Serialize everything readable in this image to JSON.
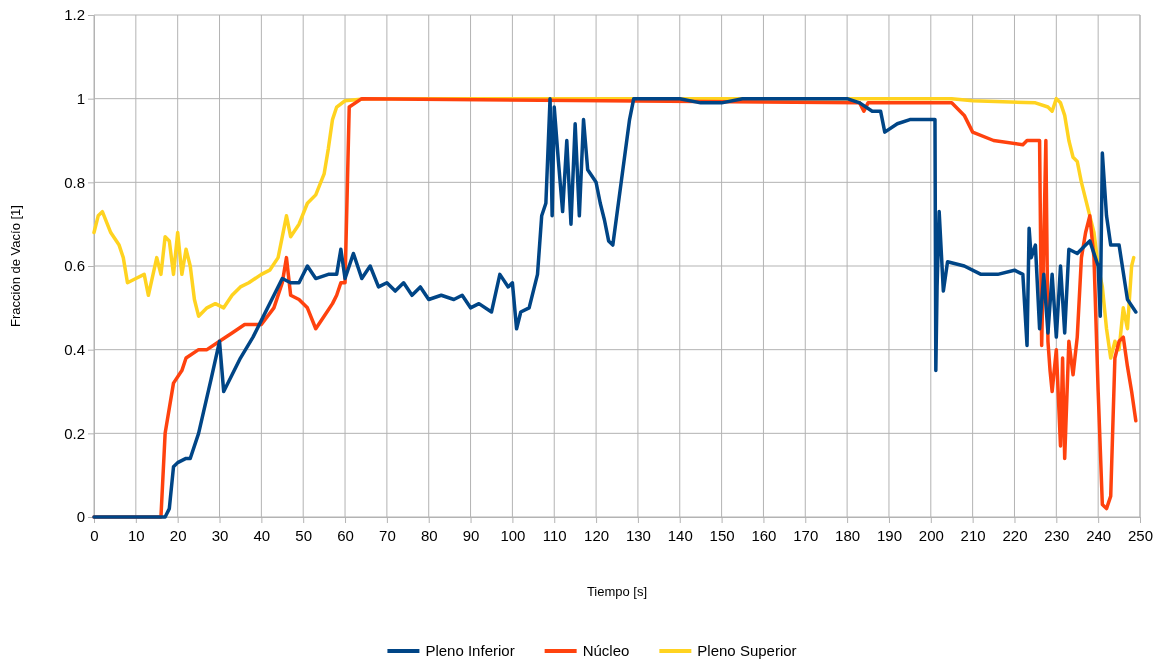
{
  "chart_data": {
    "type": "line",
    "xlabel": "Tiempo [s]",
    "ylabel": "Fracción de Vacío [1]",
    "xlim": [
      0,
      250
    ],
    "ylim": [
      0,
      1.2
    ],
    "xticks": [
      0,
      10,
      20,
      30,
      40,
      50,
      60,
      70,
      80,
      90,
      100,
      110,
      120,
      130,
      140,
      150,
      160,
      170,
      180,
      190,
      200,
      210,
      220,
      230,
      240,
      250
    ],
    "yticks": [
      0,
      0.2,
      0.4,
      0.6,
      0.8,
      1,
      1.2
    ],
    "grid": true,
    "legend": "bottom",
    "marker": "none",
    "line_style": "solid",
    "series": [
      {
        "name": "Pleno Inferior",
        "color": "#004586",
        "x": [
          0,
          17,
          18,
          19,
          20,
          22,
          23,
          25,
          28,
          30,
          31,
          33,
          35,
          38,
          40,
          43,
          45,
          47,
          49,
          51,
          53,
          56,
          58,
          59,
          60,
          62,
          64,
          66,
          68,
          70,
          72,
          74,
          76,
          78,
          80,
          83,
          86,
          88,
          90,
          92,
          95,
          97,
          99,
          100,
          101,
          102,
          104,
          106,
          107,
          108,
          109,
          109.5,
          110,
          111,
          112,
          113,
          114,
          115,
          116,
          117,
          118,
          120,
          121,
          122,
          123,
          124,
          126,
          128,
          129,
          140,
          145,
          150,
          155,
          175,
          180,
          183,
          186,
          188,
          189,
          192,
          195,
          201,
          201.2,
          201.5,
          202,
          203,
          204,
          208,
          212,
          216,
          220,
          222,
          223,
          223.5,
          224,
          225,
          226,
          227,
          228,
          229,
          230,
          231,
          232,
          233,
          235,
          237,
          238,
          240,
          240.5,
          241,
          242,
          243,
          245,
          247,
          249
        ],
        "values": [
          0,
          0,
          0.02,
          0.12,
          0.13,
          0.14,
          0.14,
          0.2,
          0.33,
          0.42,
          0.3,
          0.34,
          0.38,
          0.43,
          0.47,
          0.53,
          0.57,
          0.56,
          0.56,
          0.6,
          0.57,
          0.58,
          0.58,
          0.64,
          0.57,
          0.63,
          0.57,
          0.6,
          0.55,
          0.56,
          0.54,
          0.56,
          0.53,
          0.55,
          0.52,
          0.53,
          0.52,
          0.53,
          0.5,
          0.51,
          0.49,
          0.58,
          0.55,
          0.56,
          0.45,
          0.49,
          0.5,
          0.58,
          0.72,
          0.75,
          1.0,
          0.72,
          0.98,
          0.85,
          0.73,
          0.9,
          0.7,
          0.94,
          0.72,
          0.95,
          0.83,
          0.8,
          0.75,
          0.71,
          0.66,
          0.65,
          0.8,
          0.95,
          1.0,
          1.0,
          0.99,
          0.99,
          1.0,
          1.0,
          1.0,
          0.99,
          0.97,
          0.97,
          0.92,
          0.94,
          0.95,
          0.95,
          0.35,
          0.55,
          0.73,
          0.54,
          0.61,
          0.6,
          0.58,
          0.58,
          0.59,
          0.58,
          0.41,
          0.69,
          0.62,
          0.65,
          0.45,
          0.58,
          0.44,
          0.58,
          0.43,
          0.6,
          0.44,
          0.64,
          0.63,
          0.65,
          0.66,
          0.6,
          0.48,
          0.87,
          0.72,
          0.65,
          0.65,
          0.52,
          0.49
        ]
      },
      {
        "name": "Núcleo",
        "color": "#ff420e",
        "x": [
          0,
          16,
          17,
          19,
          21,
          22,
          25,
          27,
          30,
          33,
          36,
          40,
          43,
          45,
          46,
          47,
          49,
          51,
          53,
          55,
          57,
          58,
          59,
          60,
          61,
          64,
          183,
          184,
          185,
          205,
          208,
          210,
          215,
          222,
          223,
          226,
          226.5,
          227.5,
          228,
          228.5,
          229,
          230,
          231,
          231.5,
          232,
          233,
          234,
          235,
          236,
          237,
          238,
          239,
          240,
          241,
          242,
          243,
          244,
          245,
          246,
          247,
          248,
          249
        ],
        "values": [
          0,
          0,
          0.2,
          0.32,
          0.35,
          0.38,
          0.4,
          0.4,
          0.42,
          0.44,
          0.46,
          0.46,
          0.5,
          0.56,
          0.62,
          0.53,
          0.52,
          0.5,
          0.45,
          0.48,
          0.51,
          0.53,
          0.56,
          0.56,
          0.98,
          1.0,
          0.99,
          0.97,
          0.99,
          0.99,
          0.96,
          0.92,
          0.9,
          0.89,
          0.9,
          0.9,
          0.41,
          0.9,
          0.42,
          0.35,
          0.3,
          0.4,
          0.17,
          0.38,
          0.14,
          0.42,
          0.34,
          0.43,
          0.62,
          0.68,
          0.72,
          0.62,
          0.3,
          0.03,
          0.02,
          0.05,
          0.38,
          0.42,
          0.43,
          0.36,
          0.3,
          0.23
        ]
      },
      {
        "name": "Pleno Superior",
        "color": "#ffd320",
        "x": [
          0,
          1,
          2,
          4,
          6,
          7,
          8,
          10,
          12,
          13,
          15,
          16,
          17,
          18,
          19,
          20,
          21,
          22,
          23,
          24,
          25,
          27,
          29,
          31,
          33,
          35,
          37,
          40,
          42,
          44,
          46,
          47,
          49,
          51,
          53,
          55,
          56,
          57,
          58,
          60,
          65,
          205,
          210,
          225,
          228,
          229,
          230,
          231,
          232,
          233,
          234,
          235,
          236,
          237,
          238,
          239,
          240,
          241,
          242,
          243,
          244,
          245,
          246,
          247,
          248,
          248.5
        ],
        "values": [
          0.68,
          0.72,
          0.73,
          0.68,
          0.65,
          0.62,
          0.56,
          0.57,
          0.58,
          0.53,
          0.62,
          0.58,
          0.67,
          0.66,
          0.58,
          0.68,
          0.58,
          0.64,
          0.6,
          0.52,
          0.48,
          0.5,
          0.51,
          0.5,
          0.53,
          0.55,
          0.56,
          0.58,
          0.59,
          0.62,
          0.72,
          0.67,
          0.7,
          0.75,
          0.77,
          0.82,
          0.88,
          0.95,
          0.98,
          0.995,
          1.0,
          1.0,
          0.995,
          0.99,
          0.98,
          0.97,
          1.0,
          0.99,
          0.96,
          0.9,
          0.86,
          0.85,
          0.8,
          0.76,
          0.72,
          0.68,
          0.6,
          0.55,
          0.45,
          0.38,
          0.42,
          0.4,
          0.5,
          0.45,
          0.6,
          0.62
        ]
      }
    ]
  }
}
